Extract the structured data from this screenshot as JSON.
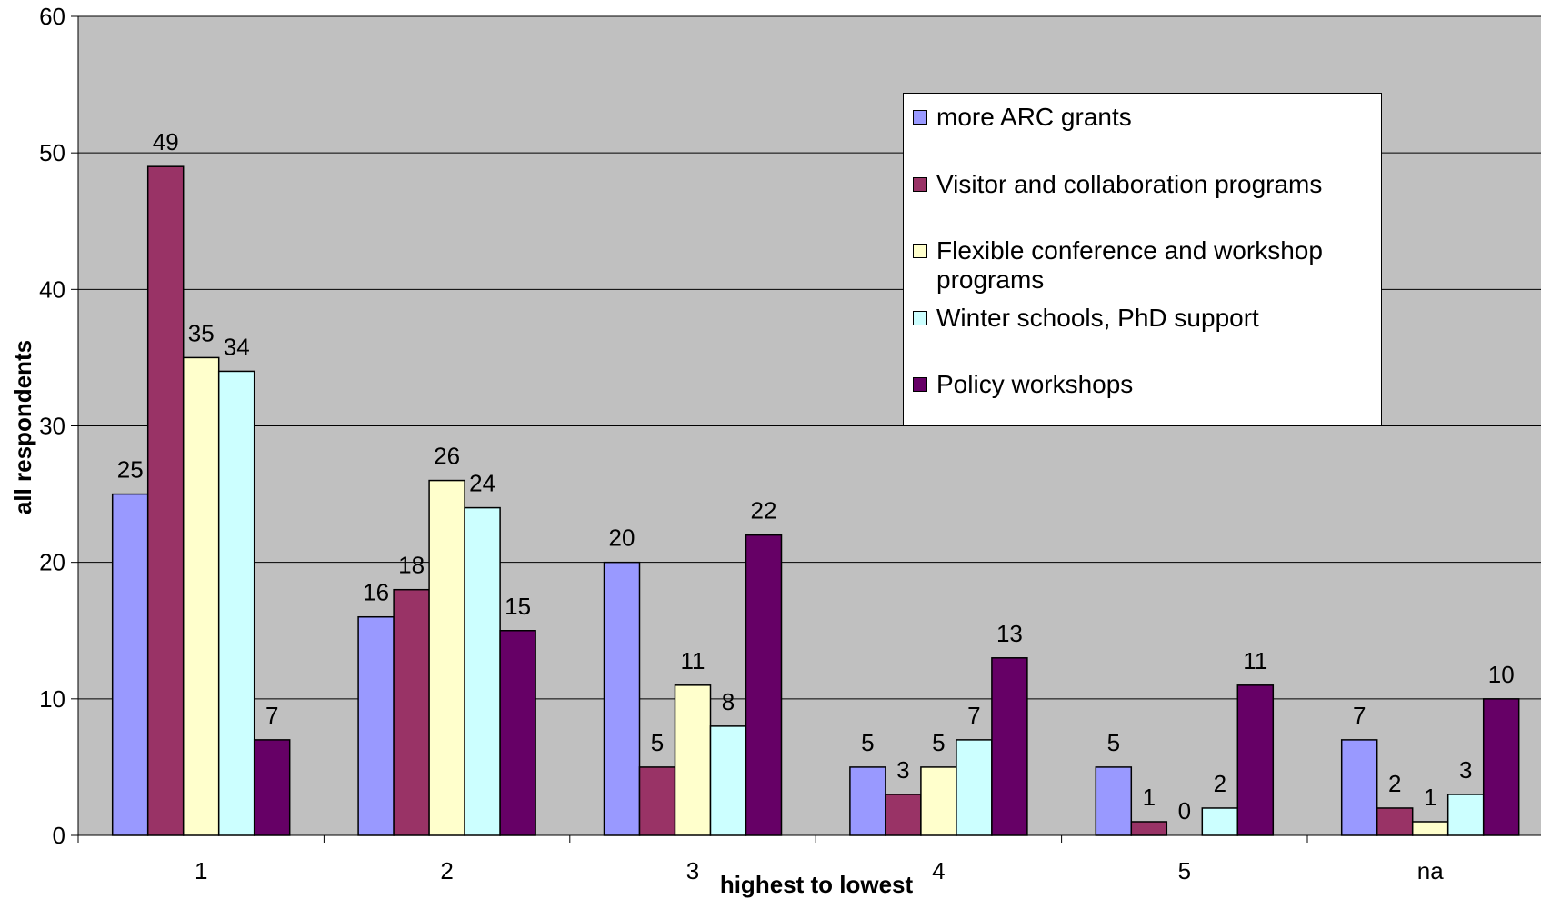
{
  "chart_data": {
    "type": "bar",
    "title": "",
    "xlabel": "highest to lowest",
    "ylabel": "all respondents",
    "categories": [
      "1",
      "2",
      "3",
      "4",
      "5",
      "na"
    ],
    "ylim": [
      0,
      60
    ],
    "yticks": [
      0,
      10,
      20,
      30,
      40,
      50,
      60
    ],
    "grid": true,
    "legend_position": "top-right",
    "series": [
      {
        "name": "more ARC grants",
        "color": "#9999ff",
        "values": [
          25,
          16,
          20,
          5,
          5,
          7
        ]
      },
      {
        "name": "Visitor and collaboration programs",
        "color": "#993366",
        "values": [
          49,
          18,
          5,
          3,
          1,
          2
        ]
      },
      {
        "name": "Flexible conference and workshop programs",
        "color": "#ffffcc",
        "values": [
          35,
          26,
          11,
          5,
          0,
          1
        ]
      },
      {
        "name": "Winter schools, PhD support",
        "color": "#ccffff",
        "values": [
          34,
          24,
          8,
          7,
          2,
          3
        ]
      },
      {
        "name": "Policy workshops",
        "color": "#660066",
        "values": [
          7,
          15,
          22,
          13,
          11,
          10
        ]
      }
    ],
    "plot_background": "#c0c0c0"
  }
}
